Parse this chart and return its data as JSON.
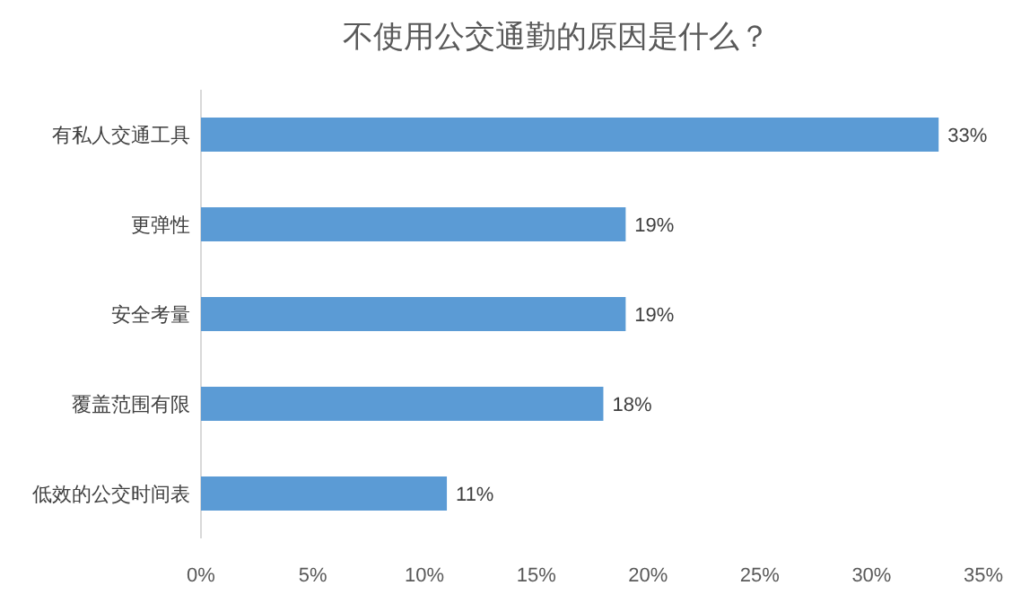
{
  "chart_data": {
    "type": "bar",
    "orientation": "horizontal",
    "title": "不使用公交通勤的原因是什么？",
    "categories": [
      "有私人交通工具",
      "更弹性",
      "安全考量",
      "覆盖范围有限",
      "低效的公交时间表"
    ],
    "values": [
      33,
      19,
      19,
      18,
      11
    ],
    "value_labels": [
      "33%",
      "19%",
      "19%",
      "18%",
      "11%"
    ],
    "color": "#5b9bd5",
    "xlim": [
      0,
      35
    ],
    "xticks": [
      {
        "value": 0,
        "label": "0%"
      },
      {
        "value": 5,
        "label": "5%"
      },
      {
        "value": 10,
        "label": "10%"
      },
      {
        "value": 15,
        "label": "15%"
      },
      {
        "value": 20,
        "label": "20%"
      },
      {
        "value": 25,
        "label": "25%"
      },
      {
        "value": 30,
        "label": "30%"
      },
      {
        "value": 35,
        "label": "35%"
      }
    ],
    "grid": false
  }
}
